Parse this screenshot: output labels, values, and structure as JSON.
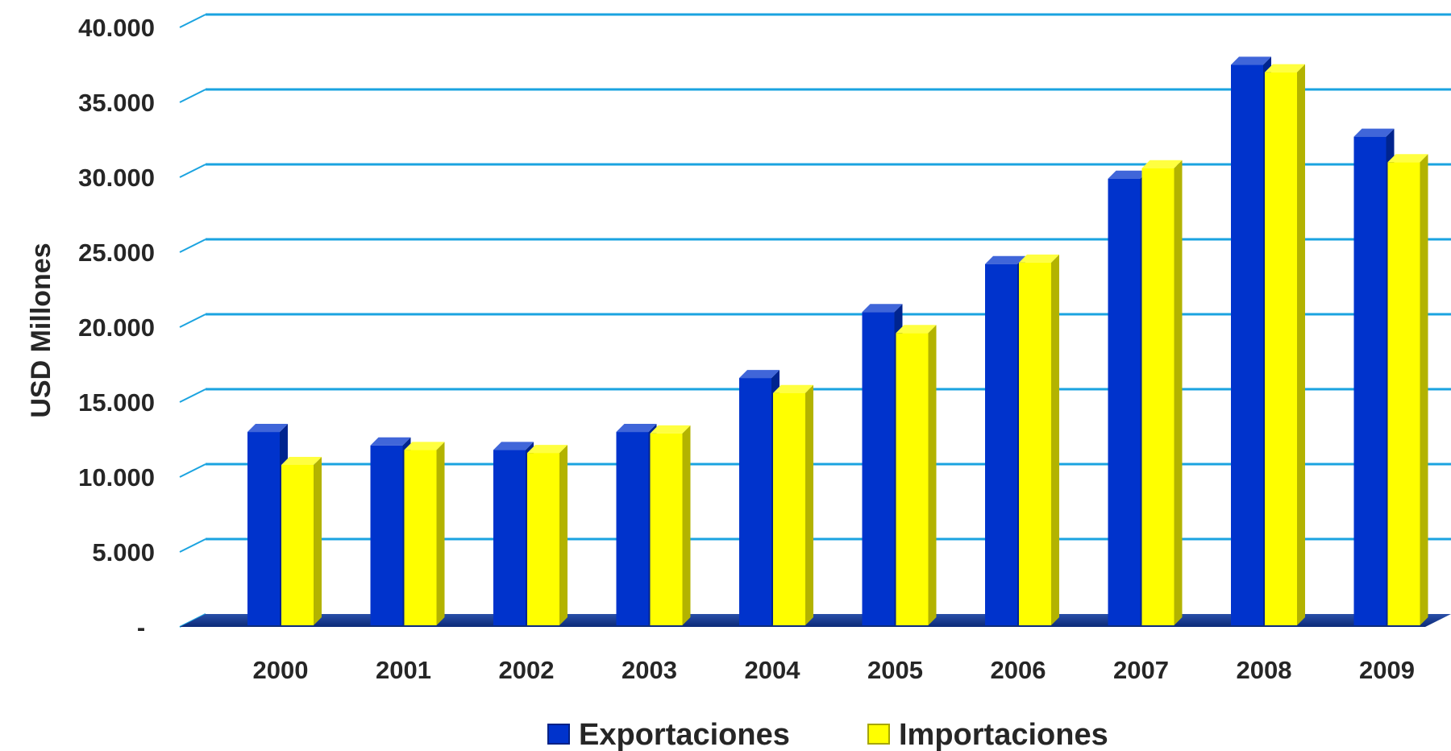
{
  "chart_data": {
    "type": "bar",
    "title": "",
    "xlabel": "",
    "ylabel": "USD Millones",
    "categories": [
      "2000",
      "2001",
      "2002",
      "2003",
      "2004",
      "2005",
      "2006",
      "2007",
      "2008",
      "2009"
    ],
    "series": [
      {
        "name": "Exportaciones",
        "color": "#0033cc",
        "values": [
          12900,
          12000,
          11700,
          12900,
          16500,
          20900,
          24100,
          29800,
          37400,
          32600
        ]
      },
      {
        "name": "Importaciones",
        "color": "#ffff00",
        "values": [
          10700,
          11700,
          11500,
          12800,
          15500,
          19500,
          24200,
          30500,
          36900,
          30900
        ]
      }
    ],
    "ylim": [
      0,
      40000
    ],
    "yticks": [
      0,
      5000,
      10000,
      15000,
      20000,
      25000,
      30000,
      35000,
      40000
    ],
    "ytick_labels": [
      "-",
      "5.000",
      "10.000",
      "15.000",
      "20.000",
      "25.000",
      "30.000",
      "35.000",
      "40.000"
    ],
    "grid": true,
    "gridline_color": "#1aa3e0",
    "legend_position": "bottom-center",
    "style": "3d-clustered-columns"
  }
}
